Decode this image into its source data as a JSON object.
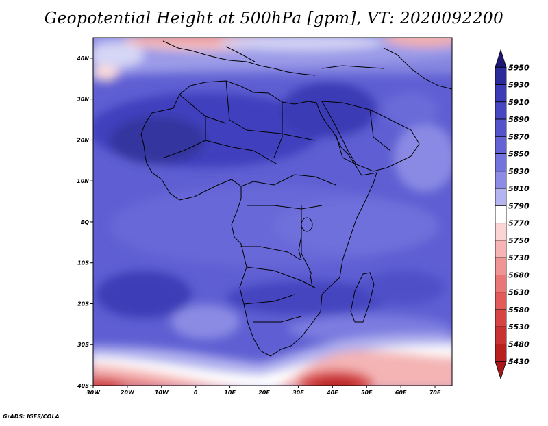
{
  "title": "Geopotential Height at 500hPa [gpm], VT: 2020092200",
  "credit": "GrADS: IGES/COLA",
  "map": {
    "projection": "latlon",
    "lon_range": [
      -30,
      75
    ],
    "lat_range": [
      -40,
      45
    ],
    "lat_ticks": [
      {
        "value": 40,
        "label": "40N"
      },
      {
        "value": 30,
        "label": "30N"
      },
      {
        "value": 20,
        "label": "20N"
      },
      {
        "value": 10,
        "label": "10N"
      },
      {
        "value": 0,
        "label": "EQ"
      },
      {
        "value": -10,
        "label": "10S"
      },
      {
        "value": -20,
        "label": "20S"
      },
      {
        "value": -30,
        "label": "30S"
      },
      {
        "value": -40,
        "label": "40S"
      }
    ],
    "lon_ticks": [
      {
        "value": -30,
        "label": "30W"
      },
      {
        "value": -20,
        "label": "20W"
      },
      {
        "value": -10,
        "label": "10W"
      },
      {
        "value": 0,
        "label": "0"
      },
      {
        "value": 10,
        "label": "10E"
      },
      {
        "value": 20,
        "label": "20E"
      },
      {
        "value": 30,
        "label": "30E"
      },
      {
        "value": 40,
        "label": "40E"
      },
      {
        "value": 50,
        "label": "50E"
      },
      {
        "value": 60,
        "label": "60E"
      },
      {
        "value": 70,
        "label": "70E"
      }
    ]
  },
  "colorbar": {
    "levels": [
      "5950",
      "5930",
      "5910",
      "5890",
      "5870",
      "5850",
      "5830",
      "5810",
      "5790",
      "5770",
      "5750",
      "5730",
      "5680",
      "5630",
      "5580",
      "5530",
      "5480",
      "5430"
    ],
    "colors": [
      "#1e1878",
      "#2b2a9a",
      "#3b3bb5",
      "#4747c4",
      "#5353cc",
      "#6363d6",
      "#7373de",
      "#8c8ce6",
      "#b4b4f0",
      "#ffffff",
      "#fbd4d4",
      "#f6b4b4",
      "#f09494",
      "#ea7676",
      "#e25a5a",
      "#d64444",
      "#c83232",
      "#b82020",
      "#a81818"
    ]
  }
}
